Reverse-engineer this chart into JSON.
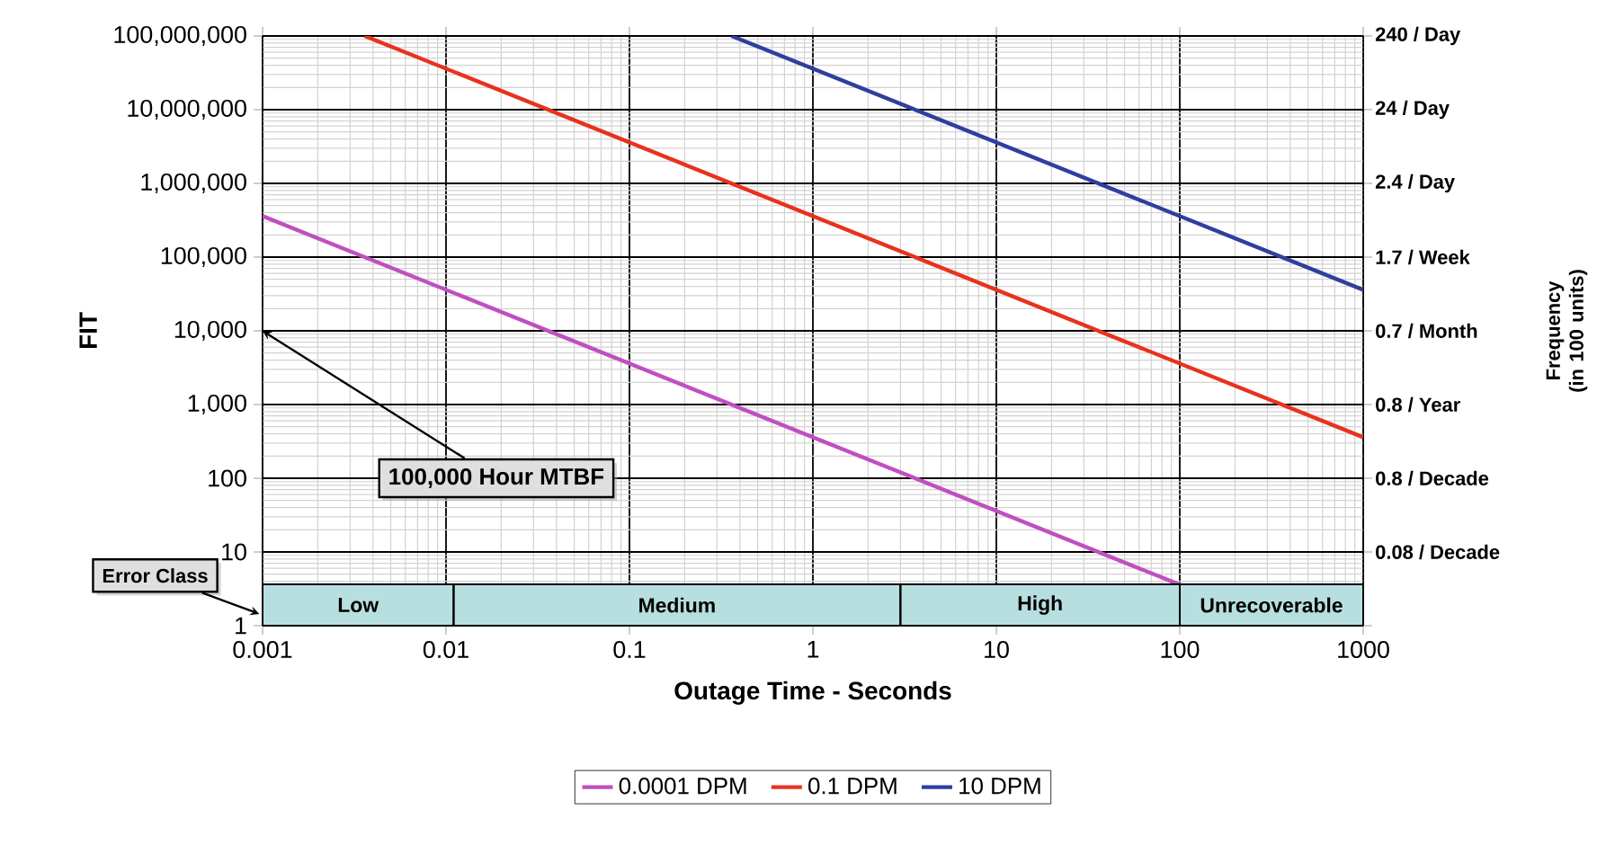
{
  "chart_data": {
    "type": "line",
    "xlabel": "Outage Time - Seconds",
    "ylabel": "FIT",
    "log": "xy",
    "grid": true,
    "legend": "bottom",
    "xlim": [
      0.001,
      1000
    ],
    "xticks": [
      0.001,
      0.01,
      0.1,
      1,
      10,
      100,
      1000
    ],
    "ylim": [
      1,
      100000000
    ],
    "yticks": [
      {
        "value": 1,
        "label": "1"
      },
      {
        "value": 10,
        "label": "10"
      },
      {
        "value": 100,
        "label": "100"
      },
      {
        "value": 1000,
        "label": "1,000"
      },
      {
        "value": 10000,
        "label": "10,000"
      },
      {
        "value": 100000,
        "label": "100,000"
      },
      {
        "value": 1000000,
        "label": "1,000,000"
      },
      {
        "value": 10000000,
        "label": "10,000,000"
      },
      {
        "value": 100000000,
        "label": "100,000,000"
      }
    ],
    "series": [
      {
        "name": "0.0001 DPM",
        "color": "#c04fc0",
        "x": [
          0.001,
          100
        ],
        "values": [
          360000,
          3.6
        ]
      },
      {
        "name": "0.1 DPM",
        "color": "#e8321e",
        "x": [
          0.0036,
          1000
        ],
        "values": [
          100000000,
          360
        ]
      },
      {
        "name": "10 DPM",
        "color": "#2e3fa0",
        "x": [
          0.36,
          1000
        ],
        "values": [
          100000000,
          36000
        ]
      }
    ],
    "bands": [
      {
        "axis": "x",
        "from": 0.001,
        "to": 0.011,
        "label": "Low",
        "color": "#b8dfe0"
      },
      {
        "axis": "x",
        "from": 0.011,
        "to": 3,
        "label": "Medium",
        "color": "#b8dfe0"
      },
      {
        "axis": "x",
        "from": 3,
        "to": 100,
        "label": "High",
        "color": "#b8dfe0"
      },
      {
        "axis": "x",
        "from": 100,
        "to": 1000,
        "label": "Unrecoverable",
        "color": "#b8dfe0"
      }
    ],
    "annotations": [
      "100,000 Hour MTBF",
      "Error Class",
      "Frequency (in 100 units)",
      "240 / Day",
      "24 / Day",
      "2.4 / Day",
      "1.7 / Week",
      "0.7 / Month",
      "0.8 / Year",
      "0.8 / Decade",
      "0.08 / Decade"
    ]
  }
}
